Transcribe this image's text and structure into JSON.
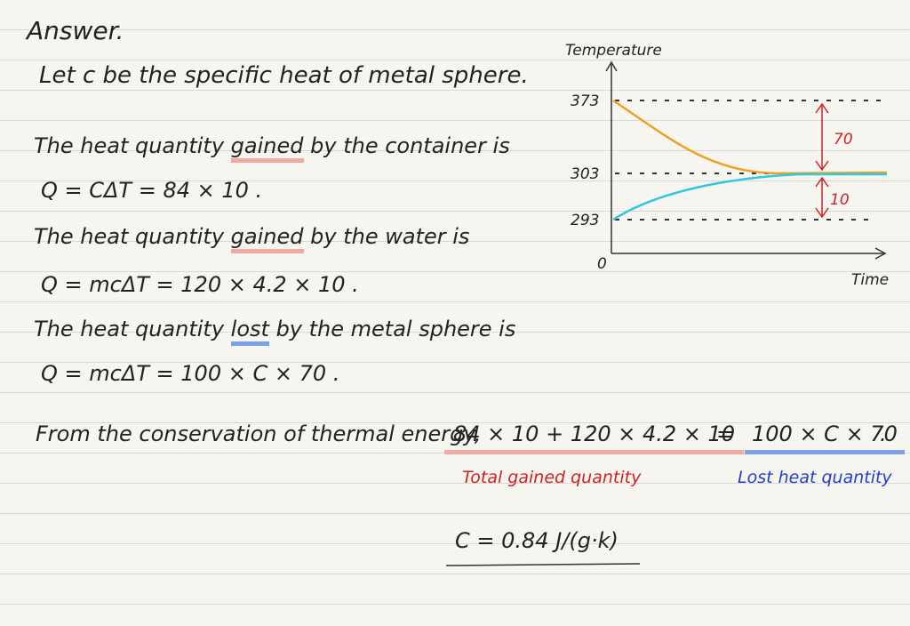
{
  "title": "Answer.",
  "intro": "Let c be the specific heat of metal sphere.",
  "steps": [
    {
      "statement": [
        "The heat quantity ",
        "gained",
        " by the container is"
      ],
      "formula": "Q = CΔT = 84 × 10 ."
    },
    {
      "statement": [
        "The heat quantity ",
        "gained",
        " by the water is"
      ],
      "formula": "Q = mcΔT = 120 × 4.2 × 10 ."
    },
    {
      "statement": [
        "The heat quantity ",
        "lost",
        " by the metal sphere is"
      ],
      "formula": "Q = mcΔT = 100 × C × 70 ."
    }
  ],
  "conservation": {
    "lead": "From the conservation of thermal energy,",
    "left": "84 × 10 + 120 × 4.2 × 10",
    "equals": "=",
    "right": "100 × C × 70",
    "end": ".",
    "left_label": "Total gained quantity",
    "right_label": "Lost heat quantity"
  },
  "result": "C = 0.84 J/(g·k)",
  "graph": {
    "y_label": "Temperature",
    "x_label": "Time",
    "origin": "0",
    "ticks": [
      "373",
      "303",
      "293"
    ],
    "annotations": [
      "70",
      "10"
    ]
  }
}
